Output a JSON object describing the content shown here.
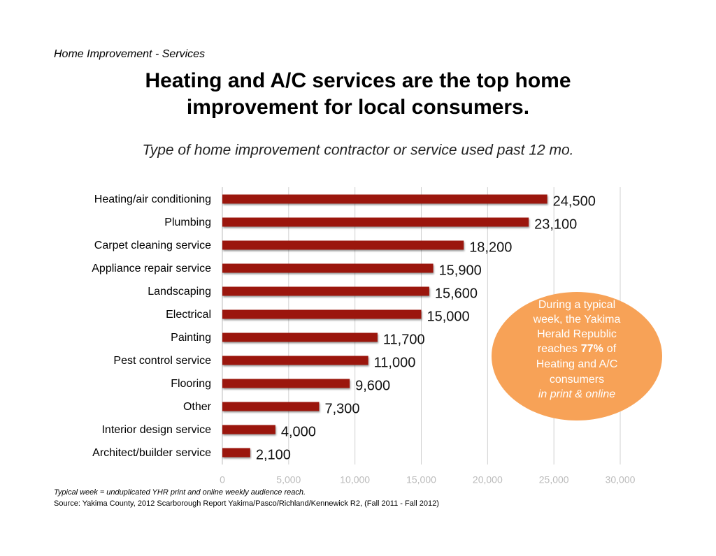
{
  "chart_data": {
    "type": "bar",
    "orientation": "horizontal",
    "supertitle": "Home Improvement - Services",
    "title": [
      "Heating and A/C services are the top home",
      "improvement for local consumers."
    ],
    "subtitle": "Type of home improvement contractor or service used past 12 mo.",
    "categories": [
      "Heating/air conditioning",
      "Plumbing",
      "Carpet cleaning service",
      "Appliance repair service",
      "Landscaping",
      "Electrical",
      "Painting",
      "Pest control service",
      "Flooring",
      "Other",
      "Interior design service",
      "Architect/builder service"
    ],
    "values": [
      24500,
      23100,
      18200,
      15900,
      15600,
      15000,
      11700,
      11000,
      9600,
      7300,
      4000,
      2100
    ],
    "value_labels": [
      "24,500",
      "23,100",
      "18,200",
      "15,900",
      "15,600",
      "15,000",
      "11,700",
      "11,000",
      "9,600",
      "7,300",
      "4,000",
      "2,100"
    ],
    "color": "#9b1408",
    "xlim": [
      0,
      30000
    ],
    "xticks": [
      0,
      {
        "value": 5000,
        "label": "5,000"
      },
      {
        "value": 10000,
        "label": "10,000"
      },
      {
        "value": 15000,
        "label": "15,000"
      },
      {
        "value": 20000,
        "label": "20,000"
      },
      {
        "value": 25000,
        "label": "25,000"
      },
      {
        "value": 30000,
        "label": "30,000"
      }
    ],
    "grid": true,
    "callout": {
      "lines": [
        "During a typical",
        "week, the Yakima",
        "Herald Republic"
      ],
      "reaches": "reaches",
      "highlight": "77%",
      "of": "of",
      "rest": [
        "Heating and A/C",
        "consumers"
      ],
      "italic": "in print & online",
      "color": "#f7a257"
    },
    "footnote": "Typical week = unduplicated YHR print and online weekly audience reach.",
    "source": "Source: Yakima County, 2012 Scarborough Report Yakima/Pasco/Richland/Kennewick R2, (Fall 2011 - Fall 2012)"
  }
}
